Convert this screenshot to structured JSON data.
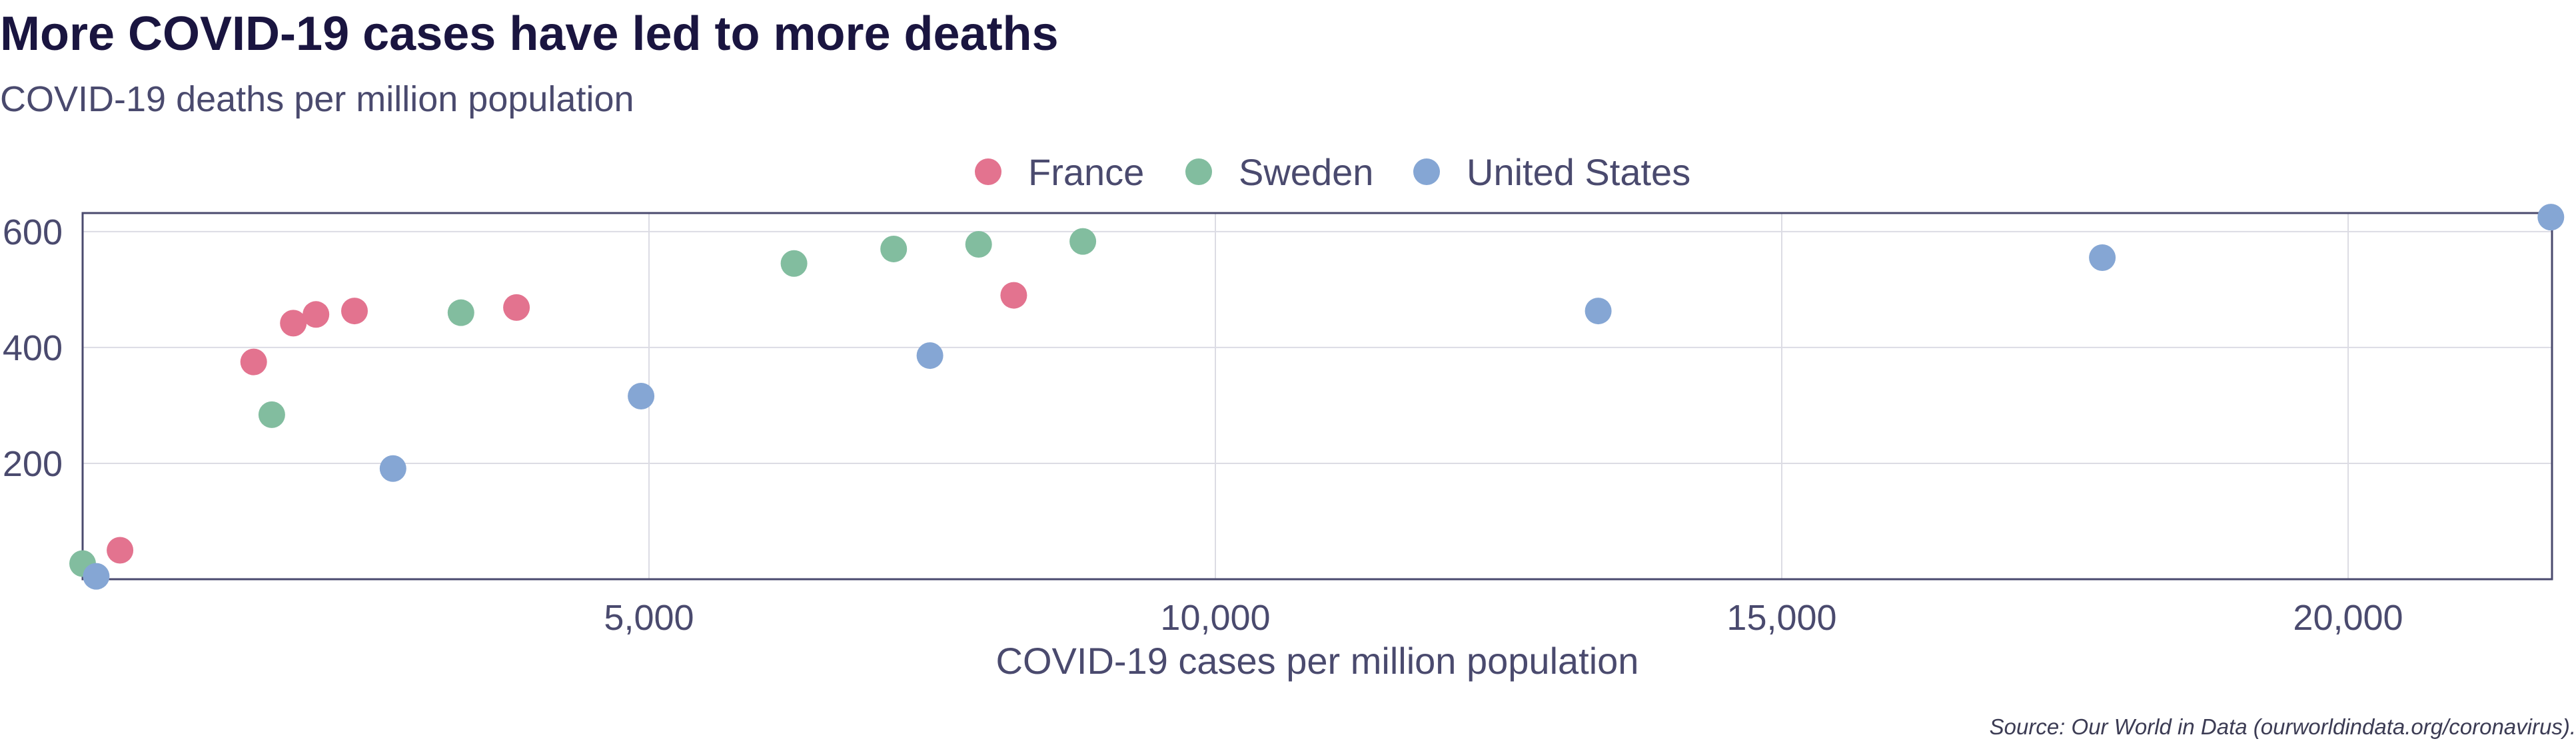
{
  "chart_data": {
    "type": "scatter",
    "title": "More COVID-19 cases have led to more deaths",
    "subtitle": "COVID-19 deaths per million population",
    "xlabel": "COVID-19 cases per million population",
    "ylabel": "",
    "source": "Source: Our World in Data (ourworldindata.org/coronavirus).",
    "xlim": [
      0,
      21800
    ],
    "ylim": [
      0,
      632
    ],
    "x_ticks": [
      5000,
      10000,
      15000,
      20000
    ],
    "x_tick_labels": [
      "5,000",
      "10,000",
      "15,000",
      "20,000"
    ],
    "y_ticks": [
      200,
      400,
      600
    ],
    "y_tick_labels": [
      "200",
      "400",
      "600"
    ],
    "grid": true,
    "legend_position": "top-center",
    "series": [
      {
        "name": "France",
        "color": "#e3738f",
        "points": [
          [
            330,
            50
          ],
          [
            1510,
            375
          ],
          [
            1860,
            442
          ],
          [
            2060,
            457
          ],
          [
            2400,
            463
          ],
          [
            3830,
            469
          ],
          [
            8220,
            490
          ]
        ]
      },
      {
        "name": "Sweden",
        "color": "#82bd9f",
        "points": [
          [
            0,
            27
          ],
          [
            1670,
            284
          ],
          [
            3340,
            460
          ],
          [
            6280,
            545
          ],
          [
            7160,
            570
          ],
          [
            7910,
            578
          ],
          [
            8830,
            583
          ]
        ]
      },
      {
        "name": "United States",
        "color": "#85a6d4",
        "points": [
          [
            120,
            5
          ],
          [
            2740,
            191
          ],
          [
            4930,
            316
          ],
          [
            7480,
            386
          ],
          [
            13380,
            463
          ],
          [
            17830,
            555
          ],
          [
            21790,
            625
          ]
        ]
      }
    ]
  }
}
